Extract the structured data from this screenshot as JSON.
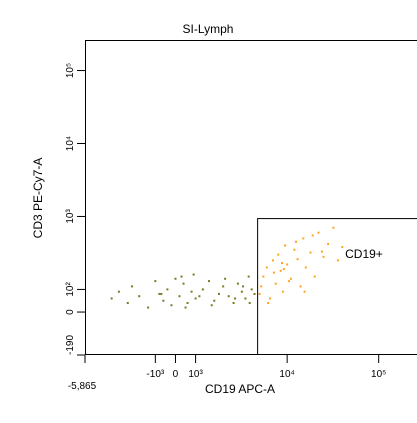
{
  "chart_data": {
    "type": "scatter",
    "title": "SI-Lymph",
    "xlabel": "CD19 APC-A",
    "ylabel": "CD3 PE-Cy7-A",
    "xscale": "biexponential",
    "yscale": "biexponential",
    "xlim": [
      -5865,
      262144
    ],
    "ylim": [
      -190,
      262144
    ],
    "xticks": [
      {
        "value": -5865,
        "label": "-5,865"
      },
      {
        "value": -1000,
        "label": "-10³"
      },
      0,
      {
        "value": 1000,
        "label": "10³"
      },
      {
        "value": 10000,
        "label": "10⁴"
      },
      {
        "value": 100000,
        "label": "10⁵"
      }
    ],
    "yticks": [
      -190,
      0,
      {
        "value": 100,
        "label": "10²"
      },
      {
        "value": 1000,
        "label": "10³"
      },
      {
        "value": 10000,
        "label": "10⁴"
      },
      {
        "value": 100000,
        "label": "10⁵"
      }
    ],
    "series": [
      {
        "color": "#7a7a22",
        "x": [
          -3000,
          -2500,
          -2000,
          -1800,
          -1500,
          -1200,
          -1000,
          -800,
          -600,
          -400,
          -200,
          0,
          200,
          400,
          600,
          800,
          1000,
          1200,
          1400,
          1600,
          1800,
          2000,
          2300,
          2600,
          2900,
          3200,
          3500,
          3800,
          4100,
          4400,
          500,
          900,
          1500,
          2100,
          2700,
          3300,
          3900,
          -700,
          300,
          1100
        ],
        "values": [
          60,
          90,
          40,
          110,
          70,
          20,
          130,
          80,
          50,
          100,
          30,
          140,
          70,
          120,
          40,
          90,
          60,
          100,
          130,
          50,
          80,
          110,
          70,
          40,
          120,
          90,
          60,
          150,
          100,
          80,
          20,
          160,
          30,
          140,
          60,
          110,
          40,
          80,
          150,
          70
        ]
      },
      {
        "color": "#ffa31a",
        "x": [
          5000,
          5500,
          6000,
          6500,
          7000,
          7500,
          8000,
          8500,
          9000,
          9500,
          10000,
          11000,
          12000,
          13000,
          14000,
          15000,
          16000,
          18000,
          20000,
          22000,
          25000,
          28000,
          32000,
          36000,
          40000,
          6200,
          7200,
          8800,
          10500,
          12500,
          15500,
          19000,
          24000,
          5200,
          9200
        ],
        "values": [
          80,
          150,
          200,
          60,
          250,
          120,
          300,
          180,
          90,
          400,
          220,
          140,
          350,
          260,
          110,
          500,
          200,
          320,
          150,
          600,
          280,
          420,
          700,
          250,
          380,
          40,
          170,
          230,
          130,
          450,
          90,
          550,
          330,
          110,
          190
        ]
      }
    ],
    "gate": {
      "label": "CD19+",
      "x": [
        4700,
        262144
      ],
      "y": [
        -190,
        950
      ]
    }
  }
}
